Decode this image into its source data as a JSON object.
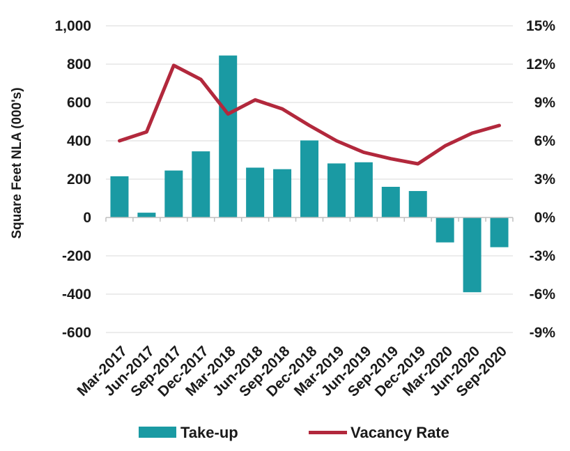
{
  "chart_data": {
    "type": "bar",
    "categories": [
      "Mar-2017",
      "Jun-2017",
      "Sep-2017",
      "Dec-2017",
      "Mar-2018",
      "Jun-2018",
      "Sep-2018",
      "Dec-2018",
      "Mar-2019",
      "Jun-2019",
      "Sep-2019",
      "Dec-2019",
      "Mar-2020",
      "Jun-2020",
      "Sep-2020"
    ],
    "series": [
      {
        "name": "Take-up",
        "type": "bar",
        "axis": "left",
        "color": "#1a9aa3",
        "values": [
          215,
          25,
          245,
          345,
          845,
          260,
          252,
          402,
          282,
          288,
          160,
          138,
          -130,
          -390,
          -155
        ]
      },
      {
        "name": "Vacancy Rate",
        "type": "line",
        "axis": "right",
        "color": "#b2283c",
        "values": [
          6.0,
          6.7,
          11.9,
          10.8,
          8.1,
          9.2,
          8.5,
          7.2,
          6.0,
          5.1,
          4.6,
          4.2,
          5.6,
          6.6,
          7.2
        ]
      }
    ],
    "ylabel": "Square Feet NLA (000's)",
    "ylim": [
      -600,
      1000
    ],
    "yticks": [
      "1,000",
      "800",
      "600",
      "400",
      "200",
      "0",
      "-200",
      "-400",
      "-600"
    ],
    "y2lim": [
      -9,
      15
    ],
    "y2ticks": [
      "15%",
      "12%",
      "9%",
      "6%",
      "3%",
      "0%",
      "-3%",
      "-6%",
      "-9%"
    ],
    "grid": true,
    "legend": "bottom"
  }
}
